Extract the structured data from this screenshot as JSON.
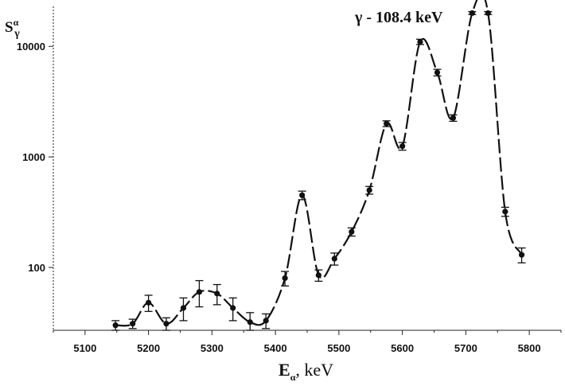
{
  "chart_data": {
    "type": "line",
    "ylabel": "S",
    "ylabel_sup": "α",
    "ylabel_sub": "γ",
    "xlabel": "E",
    "xlabel_sub": "α",
    "xlabel_unit": ", keV",
    "annotation": "γ - 108.4 keV",
    "x_scale": "linear",
    "y_scale": "log",
    "xlim": [
      5050,
      5850
    ],
    "ylim": [
      27,
      23000
    ],
    "x_ticks": [
      5100,
      5200,
      5300,
      5400,
      5500,
      5600,
      5700,
      5800
    ],
    "x_tick_labels": [
      "5100",
      "5200",
      "5300",
      "5400",
      "5500",
      "5600",
      "5700",
      "5800"
    ],
    "y_ticks": [
      100,
      1000,
      10000
    ],
    "y_tick_labels": [
      "100",
      "1000",
      "10000"
    ],
    "grid": false,
    "series": [
      {
        "style": "dashed",
        "color": "#111111",
        "points": [
          {
            "x": 5148,
            "y": 30,
            "err": 3
          },
          {
            "x": 5175,
            "y": 31,
            "err": 3
          },
          {
            "x": 5200,
            "y": 48,
            "err": 8
          },
          {
            "x": 5228,
            "y": 31,
            "err": 4
          },
          {
            "x": 5255,
            "y": 43,
            "err": 10
          },
          {
            "x": 5280,
            "y": 60,
            "err": 16
          },
          {
            "x": 5308,
            "y": 58,
            "err": 12
          },
          {
            "x": 5333,
            "y": 43,
            "err": 10
          },
          {
            "x": 5360,
            "y": 32,
            "err": 7
          },
          {
            "x": 5385,
            "y": 33,
            "err": 5
          },
          {
            "x": 5415,
            "y": 80,
            "err": 12
          },
          {
            "x": 5442,
            "y": 450,
            "err": 40
          },
          {
            "x": 5468,
            "y": 85,
            "err": 10
          },
          {
            "x": 5493,
            "y": 120,
            "err": 15
          },
          {
            "x": 5520,
            "y": 210,
            "err": 18
          },
          {
            "x": 5548,
            "y": 500,
            "err": 40
          },
          {
            "x": 5575,
            "y": 2000,
            "err": 120
          },
          {
            "x": 5600,
            "y": 1250,
            "err": 100
          },
          {
            "x": 5628,
            "y": 11000,
            "err": 600
          },
          {
            "x": 5655,
            "y": 5800,
            "err": 400
          },
          {
            "x": 5680,
            "y": 2250,
            "err": 150
          },
          {
            "x": 5710,
            "y": 20000,
            "err": 600
          },
          {
            "x": 5735,
            "y": 20000,
            "err": 600
          },
          {
            "x": 5762,
            "y": 320,
            "err": 30
          },
          {
            "x": 5788,
            "y": 130,
            "err": 20
          }
        ]
      }
    ]
  }
}
